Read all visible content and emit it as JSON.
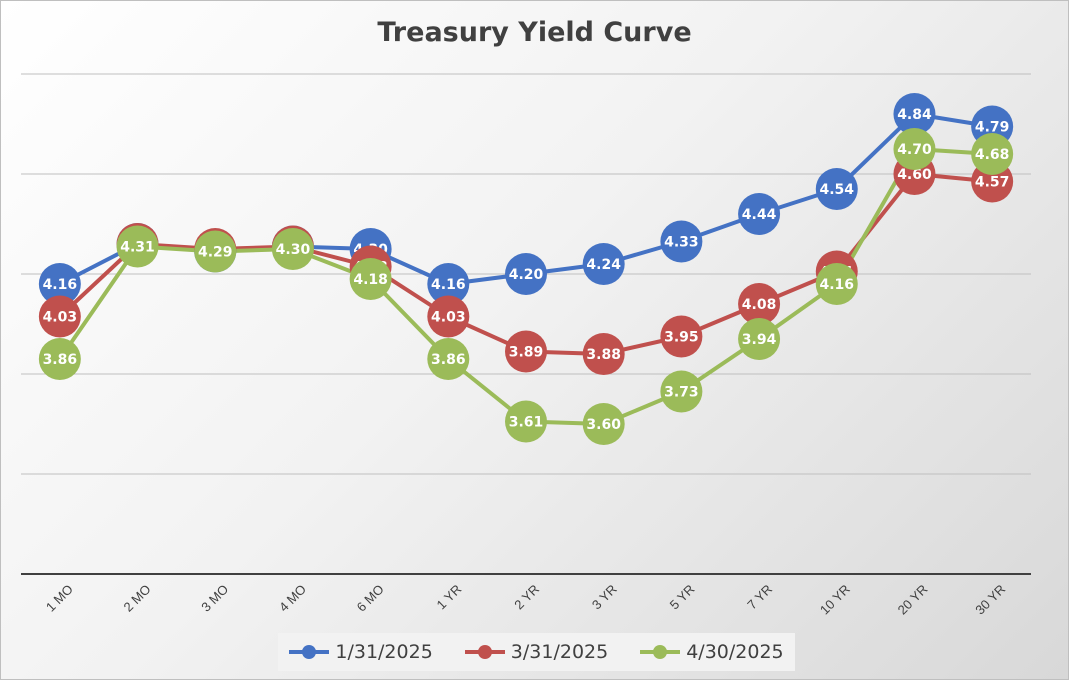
{
  "chart_data": {
    "type": "line",
    "title": "Treasury Yield Curve",
    "xlabel": "",
    "ylabel": "",
    "categories": [
      "1 MO",
      "2 MO",
      "3 MO",
      "4 MO",
      "6 MO",
      "1 YR",
      "2 YR",
      "3 YR",
      "5 YR",
      "7 YR",
      "10 YR",
      "20 YR",
      "30 YR"
    ],
    "ylim": [
      3.0,
      5.0
    ],
    "y_gridlines": [
      3.0,
      3.4,
      3.8,
      4.2,
      4.6,
      5.0
    ],
    "y_tick_labels_shown": false,
    "grid": true,
    "legend_position": "bottom",
    "data_labels": true,
    "series": [
      {
        "name": "1/31/2025",
        "color": "#4472c4",
        "values": [
          4.16,
          4.32,
          4.29,
          4.31,
          4.3,
          4.16,
          4.2,
          4.24,
          4.33,
          4.44,
          4.54,
          4.84,
          4.79
        ]
      },
      {
        "name": "3/31/2025",
        "color": "#c0504d",
        "values": [
          4.03,
          4.32,
          4.3,
          4.31,
          4.23,
          4.03,
          3.89,
          3.88,
          3.95,
          4.08,
          4.21,
          4.6,
          4.57
        ]
      },
      {
        "name": "4/30/2025",
        "color": "#9bbb59",
        "values": [
          3.86,
          4.31,
          4.29,
          4.3,
          4.18,
          3.86,
          3.61,
          3.6,
          3.73,
          3.94,
          4.16,
          4.7,
          4.68
        ]
      }
    ]
  }
}
